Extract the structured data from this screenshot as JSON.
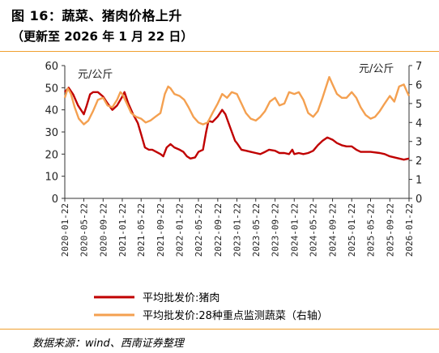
{
  "header": {
    "title": "图 16：蔬菜、猪肉价格上升",
    "subtitle": "（更新至 2026 年 1 月 22 日）"
  },
  "footer": {
    "source": "数据来源：wind、西南证券整理"
  },
  "colors": {
    "pork": "#c00000",
    "veg": "#f4a050",
    "rule": "#f0a030"
  },
  "chart_data": {
    "type": "line",
    "left_axis": {
      "unit_label": "元/公斤",
      "ticks": [
        "0",
        "10",
        "20",
        "30",
        "40",
        "50",
        "60"
      ],
      "range": [
        0,
        60
      ]
    },
    "right_axis": {
      "unit_label": "元/公斤",
      "ticks": [
        "0",
        "1",
        "2",
        "3",
        "4",
        "5",
        "6",
        "7"
      ],
      "range": [
        0,
        7
      ]
    },
    "x_range": [
      "2020-01-22",
      "2026-01-22"
    ],
    "x_ticks": [
      "2020-01-22",
      "2020-05-22",
      "2020-09-22",
      "2021-01-22",
      "2021-05-22",
      "2021-09-22",
      "2022-01-22",
      "2022-05-22",
      "2022-09-22",
      "2023-01-22",
      "2023-05-22",
      "2023-09-22",
      "2024-01-22",
      "2024-05-22",
      "2024-09-22",
      "2025-01-22",
      "2025-05-22",
      "2025-09-22",
      "2026-01-22"
    ],
    "grid": false,
    "legend_position": "bottom",
    "series": [
      {
        "name": "平均批发价:猪肉",
        "axis": "left",
        "points": [
          [
            "2020-01-22",
            48
          ],
          [
            "2020-02-15",
            50
          ],
          [
            "2020-03-15",
            47
          ],
          [
            "2020-04-15",
            42
          ],
          [
            "2020-05-22",
            38
          ],
          [
            "2020-06-10",
            42
          ],
          [
            "2020-07-01",
            47
          ],
          [
            "2020-07-20",
            48
          ],
          [
            "2020-08-20",
            48
          ],
          [
            "2020-09-22",
            46
          ],
          [
            "2020-10-20",
            43
          ],
          [
            "2020-11-20",
            40
          ],
          [
            "2020-12-20",
            42
          ],
          [
            "2021-01-22",
            46
          ],
          [
            "2021-02-05",
            48
          ],
          [
            "2021-03-01",
            43
          ],
          [
            "2021-04-01",
            38
          ],
          [
            "2021-05-01",
            34
          ],
          [
            "2021-05-22",
            29
          ],
          [
            "2021-06-15",
            23
          ],
          [
            "2021-07-10",
            22
          ],
          [
            "2021-08-01",
            22
          ],
          [
            "2021-09-22",
            20
          ],
          [
            "2021-10-10",
            19
          ],
          [
            "2021-11-01",
            23
          ],
          [
            "2021-11-25",
            24.5
          ],
          [
            "2021-12-20",
            23
          ],
          [
            "2022-01-22",
            22
          ],
          [
            "2022-02-15",
            21
          ],
          [
            "2022-03-10",
            19
          ],
          [
            "2022-04-01",
            18
          ],
          [
            "2022-05-01",
            18.5
          ],
          [
            "2022-05-22",
            21
          ],
          [
            "2022-06-20",
            22
          ],
          [
            "2022-07-10",
            30
          ],
          [
            "2022-07-25",
            35
          ],
          [
            "2022-08-20",
            34.5
          ],
          [
            "2022-09-22",
            37
          ],
          [
            "2022-10-20",
            40
          ],
          [
            "2022-11-10",
            38
          ],
          [
            "2022-12-10",
            32
          ],
          [
            "2023-01-10",
            26
          ],
          [
            "2023-01-22",
            25
          ],
          [
            "2023-02-20",
            22
          ],
          [
            "2023-03-22",
            21.5
          ],
          [
            "2023-04-20",
            21
          ],
          [
            "2023-05-22",
            20.5
          ],
          [
            "2023-06-20",
            20
          ],
          [
            "2023-07-20",
            21
          ],
          [
            "2023-08-15",
            22
          ],
          [
            "2023-09-22",
            21.5
          ],
          [
            "2023-10-20",
            20.5
          ],
          [
            "2023-11-20",
            20.5
          ],
          [
            "2023-12-20",
            20
          ],
          [
            "2024-01-10",
            22
          ],
          [
            "2024-01-22",
            20
          ],
          [
            "2024-02-20",
            20.5
          ],
          [
            "2024-03-20",
            20
          ],
          [
            "2024-04-20",
            20.5
          ],
          [
            "2024-05-22",
            21.5
          ],
          [
            "2024-06-20",
            24
          ],
          [
            "2024-07-20",
            26
          ],
          [
            "2024-08-20",
            27.5
          ],
          [
            "2024-09-22",
            26.5
          ],
          [
            "2024-10-20",
            25
          ],
          [
            "2024-11-20",
            24
          ],
          [
            "2024-12-20",
            23.5
          ],
          [
            "2025-01-22",
            23.5
          ],
          [
            "2025-02-20",
            22
          ],
          [
            "2025-03-20",
            21
          ],
          [
            "2025-05-22",
            21
          ],
          [
            "2025-07-20",
            20.5
          ],
          [
            "2025-08-20",
            20
          ],
          [
            "2025-09-22",
            19
          ],
          [
            "2025-11-20",
            18
          ],
          [
            "2025-12-20",
            17.5
          ],
          [
            "2026-01-22",
            18
          ]
        ]
      },
      {
        "name": "平均批发价:28种重点监测蔬菜（右轴）",
        "axis": "right",
        "points": [
          [
            "2020-01-22",
            5.3
          ],
          [
            "2020-02-10",
            5.8
          ],
          [
            "2020-03-01",
            5.5
          ],
          [
            "2020-03-25",
            4.8
          ],
          [
            "2020-04-20",
            4.2
          ],
          [
            "2020-05-22",
            3.9
          ],
          [
            "2020-06-20",
            4.1
          ],
          [
            "2020-07-20",
            4.6
          ],
          [
            "2020-08-20",
            5.2
          ],
          [
            "2020-09-22",
            5.3
          ],
          [
            "2020-10-20",
            4.9
          ],
          [
            "2020-11-20",
            4.8
          ],
          [
            "2020-12-20",
            5.2
          ],
          [
            "2021-01-10",
            5.6
          ],
          [
            "2021-01-22",
            5.5
          ],
          [
            "2021-02-20",
            5.0
          ],
          [
            "2021-03-20",
            4.5
          ],
          [
            "2021-04-20",
            4.3
          ],
          [
            "2021-05-22",
            4.2
          ],
          [
            "2021-06-20",
            4.0
          ],
          [
            "2021-07-20",
            4.1
          ],
          [
            "2021-08-20",
            4.3
          ],
          [
            "2021-09-22",
            4.5
          ],
          [
            "2021-10-20",
            5.5
          ],
          [
            "2021-11-10",
            5.9
          ],
          [
            "2021-11-25",
            5.8
          ],
          [
            "2021-12-20",
            5.5
          ],
          [
            "2022-01-22",
            5.4
          ],
          [
            "2022-02-20",
            5.2
          ],
          [
            "2022-03-20",
            4.8
          ],
          [
            "2022-04-20",
            4.3
          ],
          [
            "2022-05-22",
            4.0
          ],
          [
            "2022-06-20",
            3.9
          ],
          [
            "2022-07-20",
            4.0
          ],
          [
            "2022-08-20",
            4.5
          ],
          [
            "2022-09-22",
            5.0
          ],
          [
            "2022-10-20",
            5.5
          ],
          [
            "2022-11-20",
            5.3
          ],
          [
            "2022-12-20",
            5.6
          ],
          [
            "2023-01-22",
            5.5
          ],
          [
            "2023-02-20",
            5.0
          ],
          [
            "2023-03-20",
            4.5
          ],
          [
            "2023-04-20",
            4.2
          ],
          [
            "2023-05-22",
            4.1
          ],
          [
            "2023-06-20",
            4.3
          ],
          [
            "2023-07-20",
            4.6
          ],
          [
            "2023-08-20",
            5.1
          ],
          [
            "2023-09-22",
            5.3
          ],
          [
            "2023-10-20",
            4.9
          ],
          [
            "2023-11-20",
            5.0
          ],
          [
            "2023-12-20",
            5.6
          ],
          [
            "2024-01-22",
            5.5
          ],
          [
            "2024-02-20",
            5.6
          ],
          [
            "2024-03-20",
            5.2
          ],
          [
            "2024-04-20",
            4.5
          ],
          [
            "2024-05-22",
            4.3
          ],
          [
            "2024-06-20",
            4.6
          ],
          [
            "2024-07-20",
            5.3
          ],
          [
            "2024-08-20",
            6.1
          ],
          [
            "2024-09-01",
            6.4
          ],
          [
            "2024-09-22",
            6.0
          ],
          [
            "2024-10-20",
            5.5
          ],
          [
            "2024-11-20",
            5.3
          ],
          [
            "2024-12-20",
            5.3
          ],
          [
            "2025-01-22",
            5.6
          ],
          [
            "2025-02-20",
            5.3
          ],
          [
            "2025-03-20",
            4.8
          ],
          [
            "2025-04-20",
            4.4
          ],
          [
            "2025-05-22",
            4.2
          ],
          [
            "2025-06-20",
            4.3
          ],
          [
            "2025-07-20",
            4.6
          ],
          [
            "2025-08-20",
            5.0
          ],
          [
            "2025-09-22",
            5.4
          ],
          [
            "2025-10-20",
            5.1
          ],
          [
            "2025-11-20",
            5.9
          ],
          [
            "2025-12-20",
            6.0
          ],
          [
            "2026-01-10",
            5.6
          ],
          [
            "2026-01-22",
            5.4
          ]
        ]
      }
    ]
  }
}
